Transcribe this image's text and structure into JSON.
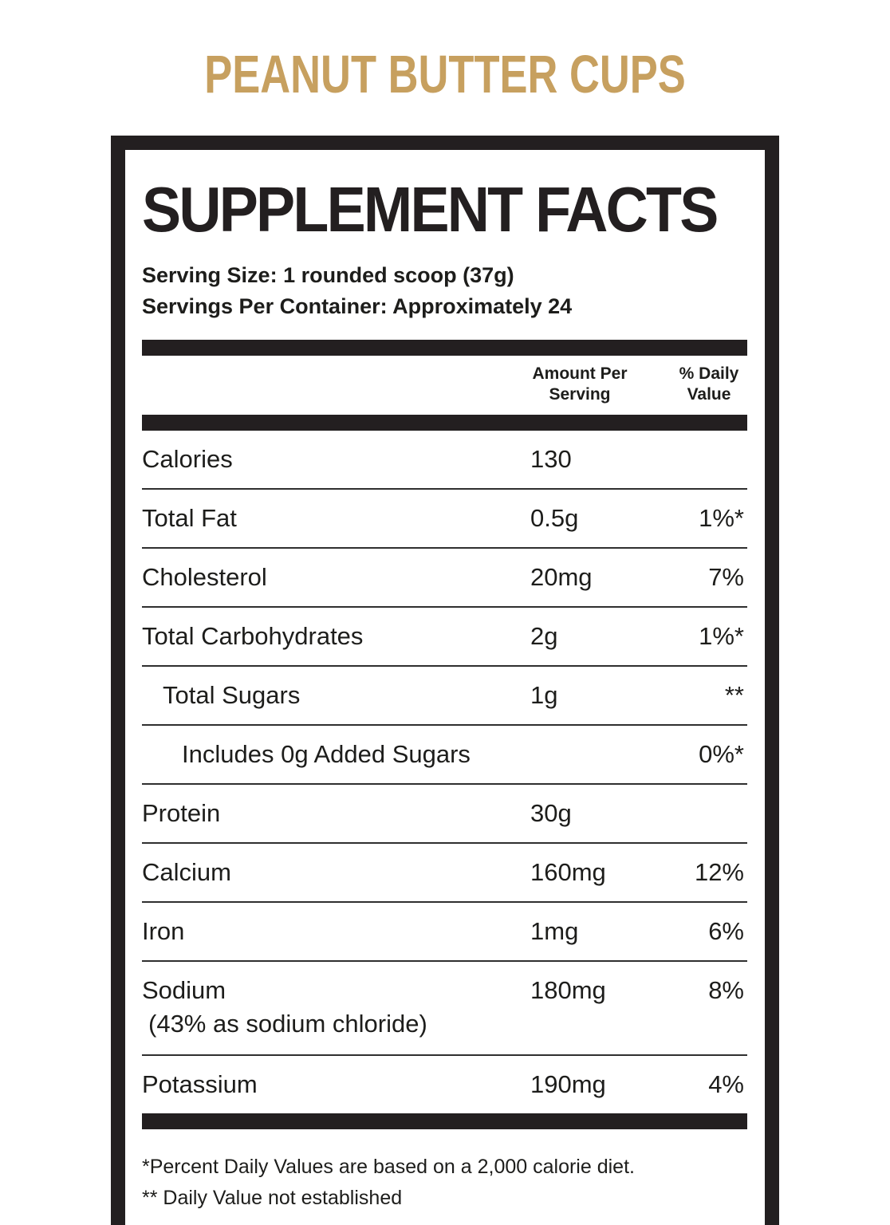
{
  "page": {
    "title": "PEANUT BUTTER CUPS"
  },
  "colors": {
    "accent_gold": "#c7a05f",
    "ink": "#231f20"
  },
  "panel": {
    "heading": "SUPPLEMENT FACTS",
    "serving_size_label": "Serving Size:",
    "serving_size_value": "1 rounded scoop (37g)",
    "servings_label": "Servings Per Container:",
    "servings_value": "Approximately 24",
    "columns": [
      "Amount Per Serving",
      "% Daily Value"
    ],
    "rows": [
      {
        "label": "Calories",
        "amount": "130",
        "dv": "",
        "indent": 0
      },
      {
        "label": "Total Fat",
        "amount": "0.5g",
        "dv": "1%*",
        "indent": 0
      },
      {
        "label": "Cholesterol",
        "amount": "20mg",
        "dv": "7%",
        "indent": 0
      },
      {
        "label": "Total Carbohydrates",
        "amount": "2g",
        "dv": "1%*",
        "indent": 0
      },
      {
        "label": "Total Sugars",
        "amount": "1g",
        "dv": "**",
        "indent": 1
      },
      {
        "label": "Includes 0g Added Sugars",
        "amount": "",
        "dv": "0%*",
        "indent": 2
      },
      {
        "label": "Protein",
        "amount": "30g",
        "dv": "",
        "indent": 0
      },
      {
        "label": "Calcium",
        "amount": "160mg",
        "dv": "12%",
        "indent": 0
      },
      {
        "label": "Iron",
        "amount": "1mg",
        "dv": "6%",
        "indent": 0
      },
      {
        "label": "Sodium",
        "amount": "180mg",
        "dv": "8%",
        "sub": "(43% as sodium chloride)",
        "indent": 0
      },
      {
        "label": "Potassium",
        "amount": "190mg",
        "dv": "4%",
        "indent": 0
      }
    ],
    "footnotes": [
      "*Percent Daily Values are based on a 2,000 calorie diet.",
      "** Daily Value not established"
    ]
  }
}
